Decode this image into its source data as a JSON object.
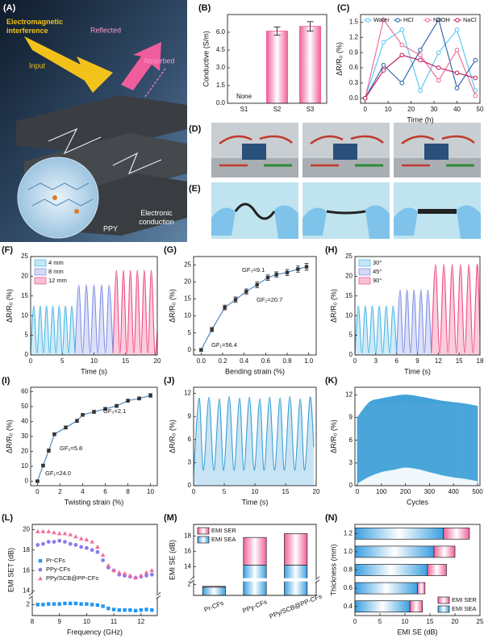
{
  "illustration": {
    "label": "(A)",
    "title": [
      "Electromagnetic",
      "interference"
    ],
    "input": "Input",
    "reflected": "Reflected",
    "absorbed": "Absorbed",
    "material": "PPY",
    "conduction": [
      "Electronic",
      "conduction"
    ]
  },
  "photos": [
    {
      "label": "(D)"
    },
    {
      "label": "(E)"
    }
  ],
  "chart_data": [
    {
      "type": "bar",
      "label": "(B)",
      "categories": [
        "S1",
        "S2",
        "S3"
      ],
      "values": [
        null,
        6.1,
        6.5
      ],
      "errors": [
        null,
        0.35,
        0.4
      ],
      "value_labels": [
        "None",
        null,
        null
      ],
      "color": "#f0609a",
      "ylabel": "Conductive (S/m)",
      "ylim": [
        0,
        7.5
      ],
      "yticks": [
        {
          "value": 0,
          "label": "0.0"
        },
        1.5,
        {
          "value": 3,
          "label": "3.0"
        },
        4.5,
        {
          "value": 6,
          "label": "6.0"
        }
      ]
    },
    {
      "type": "line",
      "label": "(C)",
      "x": [
        0,
        8,
        16,
        24,
        32,
        40,
        48
      ],
      "series": [
        {
          "name": "Water",
          "color": "#4fc3f7",
          "marker": "circle-open",
          "values": [
            0,
            1.1,
            1.35,
            0.15,
            0.9,
            1.35,
            0.15
          ]
        },
        {
          "name": "HCl",
          "color": "#1f5fa8",
          "marker": "circle-open",
          "values": [
            0,
            0.65,
            0.3,
            0.95,
            1.55,
            0.2,
            0.75
          ]
        },
        {
          "name": "NaOH",
          "color": "#f06292",
          "marker": "circle-open",
          "values": [
            0,
            1.55,
            1.05,
            0.85,
            0.35,
            0.95,
            0.05
          ]
        },
        {
          "name": "NaCl",
          "color": "#c2185b",
          "marker": "circle-open",
          "values": [
            0,
            0.55,
            0.85,
            0.75,
            0.6,
            0.5,
            0.4
          ]
        }
      ],
      "xlim": [
        -2,
        50
      ],
      "xticks": [
        0,
        10,
        20,
        30,
        40,
        50
      ],
      "ylim": [
        -0.1,
        1.65
      ],
      "yticks": [
        {
          "value": 0,
          "label": "0.0"
        },
        0.3,
        0.6,
        0.9,
        1.2,
        1.5
      ],
      "xlabel": "Time (h)",
      "ylabel": "ΔR/R₀ (%)",
      "legend": "upper center"
    },
    {
      "type": "area",
      "label": "(F)",
      "series": [
        {
          "name": "4 mm",
          "color": "#4fb6e6",
          "x": [
            0,
            0.5,
            1,
            1.5,
            2,
            2.5,
            3,
            3.5,
            4,
            4.5,
            5,
            5.5,
            6,
            6.5,
            7
          ],
          "values": [
            0.5,
            12.5,
            0.5,
            12.5,
            0.5,
            12.5,
            0.5,
            12.5,
            0.5,
            12.5,
            0.5,
            12.5,
            0.5,
            12.5,
            0.5
          ]
        },
        {
          "name": "8 mm",
          "color": "#7f8fe6",
          "x": [
            7,
            7.6,
            8.2,
            8.8,
            9.4,
            10,
            10.6,
            11.2,
            11.8,
            12.4,
            13
          ],
          "values": [
            0.5,
            17.8,
            0.5,
            17.8,
            0.5,
            17.8,
            0.5,
            17.8,
            0.5,
            17.8,
            0.5
          ]
        },
        {
          "name": "12 mm",
          "color": "#ee4c86",
          "x": [
            13,
            13.55,
            14.1,
            14.65,
            15.2,
            15.75,
            16.3,
            16.85,
            17.4,
            17.95,
            18.5,
            19.05,
            19.6,
            20
          ],
          "values": [
            0.5,
            21.5,
            0.5,
            21.5,
            0.5,
            21.5,
            0.5,
            21.5,
            0.5,
            21.5,
            0.5,
            21.5,
            0.5,
            6
          ]
        }
      ],
      "xlim": [
        0,
        20
      ],
      "xticks": [
        0,
        5,
        10,
        15,
        20
      ],
      "ylim": [
        0,
        25
      ],
      "yticks": [
        0,
        5,
        10,
        15,
        20,
        25
      ],
      "xlabel": "Time (s)",
      "ylabel": "ΔR/R₀ (%)",
      "legend": "upper left"
    },
    {
      "type": "line",
      "label": "(G)",
      "x": [
        0,
        0.1,
        0.22,
        0.32,
        0.42,
        0.52,
        0.62,
        0.7,
        0.8,
        0.9,
        0.98
      ],
      "series": [
        {
          "color": "#3d7fc4",
          "marker": "square",
          "marker_color": "#333333",
          "values": [
            0,
            6,
            12.5,
            14.8,
            17.2,
            19.2,
            21.3,
            22.2,
            22.8,
            23.8,
            24.5
          ],
          "errors": [
            0.4,
            0.6,
            0.7,
            0.8,
            0.8,
            0.9,
            0.8,
            0.8,
            0.9,
            0.9,
            1
          ]
        }
      ],
      "xlim": [
        -0.07,
        1.07
      ],
      "xticks": [
        {
          "value": 0,
          "label": "0.0"
        },
        0.2,
        0.4,
        0.6,
        0.8,
        {
          "value": 1,
          "label": "1.0"
        }
      ],
      "ylim": [
        -1.5,
        27.5
      ],
      "yticks": [
        0,
        5,
        10,
        15,
        20,
        25
      ],
      "xlabel": "Bending strain (%)",
      "ylabel": "ΔR/R₀ (%)",
      "annotations": [
        "GF₁=56.4",
        "GF₂=20.7",
        "GF₃=9.1"
      ]
    },
    {
      "type": "area",
      "label": "(H)",
      "series": [
        {
          "name": "30°",
          "color": "#4fb6e6",
          "x": [
            0,
            0.5,
            1,
            1.5,
            2,
            2.5,
            3,
            3.5,
            4,
            4.5,
            5,
            5.5,
            6
          ],
          "values": [
            0.5,
            12.5,
            0.5,
            12.5,
            0.5,
            12.5,
            0.5,
            12.5,
            0.5,
            12.5,
            0.5,
            12.5,
            0.5
          ]
        },
        {
          "name": "45°",
          "color": "#7f8fe6",
          "x": [
            6,
            6.5,
            7,
            7.5,
            8,
            8.5,
            9,
            9.5,
            10,
            10.5,
            11
          ],
          "values": [
            0.5,
            16.5,
            0.5,
            16.5,
            0.5,
            16.5,
            0.5,
            16.5,
            0.5,
            16.5,
            0.5
          ]
        },
        {
          "name": "90°",
          "color": "#ee4c86",
          "x": [
            11,
            11.6,
            12.2,
            12.8,
            13.4,
            14,
            14.6,
            15.2,
            15.8,
            16.4,
            17,
            17.6,
            18
          ],
          "values": [
            0.5,
            23,
            0.5,
            23,
            0.5,
            23,
            0.5,
            23,
            0.5,
            23,
            0.5,
            23,
            5
          ]
        }
      ],
      "xlim": [
        0,
        18
      ],
      "xticks": [
        0,
        3,
        6,
        9,
        12,
        15,
        18
      ],
      "ylim": [
        0,
        25
      ],
      "yticks": [
        0,
        5,
        10,
        15,
        20,
        25
      ],
      "xlabel": "Time (s)",
      "ylabel": "ΔR/R₀ (%)",
      "legend": "upper left"
    },
    {
      "type": "line",
      "label": "(I)",
      "x": [
        0,
        0.5,
        1,
        1.5,
        2.5,
        3.5,
        4,
        5,
        6,
        7,
        8,
        9,
        10
      ],
      "series": [
        {
          "color": "#3d7fc4",
          "marker": "square",
          "marker_color": "#333333",
          "values": [
            0,
            10.5,
            20.5,
            31.5,
            36,
            40.5,
            44.5,
            46.5,
            48.5,
            50.5,
            54,
            55.5,
            57.5
          ],
          "errors": [
            0.3,
            0.8,
            1,
            1,
            1,
            1,
            1,
            1,
            1,
            1,
            1,
            1,
            1.2
          ]
        }
      ],
      "xlim": [
        -0.6,
        10.6
      ],
      "xticks": [
        0,
        2,
        4,
        6,
        8,
        10
      ],
      "ylim": [
        -3,
        63
      ],
      "yticks": [
        0,
        10,
        20,
        30,
        40,
        50,
        60
      ],
      "xlabel": "Twisting strain (%)",
      "ylabel": "ΔR/R₀ (%)",
      "annotations": [
        "GF₁=24.0",
        "GF₂=5.8",
        "GF₃=2.1"
      ]
    },
    {
      "type": "area",
      "label": "(J)",
      "series": [
        {
          "color": "#3a9fd6",
          "x": [
            0,
            0.9,
            1.6,
            2.5,
            3.3,
            4.2,
            4.9,
            5.8,
            6.6,
            7.5,
            8.2,
            9.1,
            9.9,
            10.8,
            11.5,
            12.4,
            13.2,
            14.1,
            14.8,
            15.7,
            16.5,
            17.4,
            18.1,
            19,
            19.6
          ],
          "values": [
            1.5,
            11.4,
            2,
            11.5,
            2,
            11.3,
            2,
            11.6,
            2,
            11.4,
            2,
            11.5,
            2,
            11.3,
            2,
            11.5,
            2,
            11.4,
            2,
            11.6,
            2,
            11.3,
            2,
            11.5,
            5
          ]
        }
      ],
      "xlim": [
        0,
        20
      ],
      "xticks": [
        0,
        5,
        10,
        15,
        20
      ],
      "ylim": [
        0,
        12.8
      ],
      "yticks": [
        0,
        3,
        6,
        9,
        12
      ],
      "xlabel": "Time (s)",
      "ylabel": "ΔR/R₀ (%)"
    },
    {
      "type": "band",
      "label": "(K)",
      "color": "#2f98d4",
      "x": [
        0,
        50,
        100,
        150,
        200,
        250,
        300,
        350,
        400,
        450,
        500
      ],
      "upper": [
        9,
        11,
        11.5,
        11.8,
        12,
        11.8,
        11.5,
        11.2,
        11,
        10.8,
        10.5
      ],
      "lower": [
        0.3,
        1.2,
        1.8,
        2.1,
        2.4,
        2.2,
        1.8,
        1.4,
        1.1,
        0.9,
        0.6
      ],
      "xlim": [
        -10,
        510
      ],
      "xticks": [
        0,
        100,
        200,
        300,
        400,
        500
      ],
      "ylim": [
        0,
        13
      ],
      "yticks": [
        0,
        3,
        6,
        9,
        12
      ],
      "xlabel": "Cycles",
      "ylabel": "ΔR/R₀ (%)"
    },
    {
      "type": "line",
      "label": "(L)",
      "connect": false,
      "x": [
        8.2,
        8.4,
        8.6,
        8.8,
        9,
        9.2,
        9.4,
        9.6,
        9.8,
        10,
        10.2,
        10.4,
        10.6,
        10.8,
        11,
        11.2,
        11.4,
        11.6,
        11.8,
        12,
        12.2,
        12.4
      ],
      "series": [
        {
          "name": "Pr-CFs",
          "color": "#2196f3",
          "marker": "square",
          "values": [
            2,
            2,
            2.1,
            2.1,
            2.1,
            2.2,
            2.2,
            2.2,
            2.1,
            2.1,
            2,
            1.9,
            1.7,
            1.3,
            1.1,
            1,
            1,
            1,
            0.9,
            1,
            1.1,
            1
          ]
        },
        {
          "name": "PPy-CFs",
          "color": "#8a7cf0",
          "marker": "circle",
          "values": [
            18.5,
            18.6,
            18.8,
            18.8,
            18.9,
            18.8,
            18.6,
            18.5,
            18.3,
            18.2,
            18,
            17.8,
            17,
            16.3,
            16,
            15.6,
            15.5,
            15.4,
            15.3,
            15.4,
            15.5,
            15.6
          ]
        },
        {
          "name": "PPy/SCB@PP-CFs",
          "color": "#f06a9e",
          "marker": "triangle",
          "values": [
            19.8,
            19.8,
            19.8,
            19.7,
            19.6,
            19.6,
            19.5,
            19.3,
            19.1,
            19,
            18.8,
            18.3,
            17.5,
            16.5,
            16,
            15.8,
            15.7,
            15.5,
            15.3,
            15.5,
            15.8,
            16
          ]
        }
      ],
      "xlim": [
        8,
        12.6
      ],
      "xticks": [
        8,
        9,
        10,
        11,
        12
      ],
      "ylim": [
        0,
        20.5
      ],
      "axis_break": [
        3.2,
        13.8
      ],
      "yticks": [
        2,
        14,
        16,
        18,
        20
      ],
      "xlabel": "Frequency (GHz)",
      "ylabel": "EMI SET (dB)",
      "legend": "center left"
    },
    {
      "type": "stacked_bar",
      "label": "(M)",
      "categories": [
        "Pr-CFs",
        "PPy-CFs",
        "PPy/SCB@PP-CFs"
      ],
      "series": [
        {
          "name": "EMI SEA",
          "color": "#3a9fe0",
          "values": [
            1.5,
            14.2,
            14.2
          ]
        },
        {
          "name": "EMI SER",
          "color": "#f0609a",
          "values": [
            0.15,
            3.6,
            4.1
          ]
        }
      ],
      "ylim": [
        0,
        19.5
      ],
      "axis_break": [
        2.4,
        12.6
      ],
      "yticks": [
        2,
        14,
        16,
        18
      ],
      "ylabel": "EMI SE (dB)",
      "legend": "upper left"
    },
    {
      "type": "stacked_hbar",
      "label": "(N)",
      "y": [
        0.4,
        0.6,
        0.8,
        1,
        1.2
      ],
      "series": [
        {
          "name": "EMI SEA",
          "color": "#3a9fe0",
          "values": [
            11,
            12.5,
            14.5,
            15.8,
            17.7
          ]
        },
        {
          "name": "EMI SER",
          "color": "#f0609a",
          "values": [
            2.5,
            1.5,
            3.8,
            4.2,
            5.2
          ]
        }
      ],
      "xlim": [
        0,
        25
      ],
      "xticks": [
        0,
        5,
        10,
        15,
        20,
        25
      ],
      "ylim": [
        0.3,
        1.3
      ],
      "yticks": [
        0.4,
        0.6,
        0.8,
        {
          "value": 1,
          "label": "1.0"
        },
        1.2
      ],
      "xlabel": "EMI SE (dB)",
      "ylabel": "Thickness (mm)",
      "legend": "lower right"
    }
  ]
}
